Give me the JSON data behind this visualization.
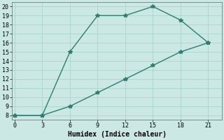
{
  "xlabel": "Humidex (Indice chaleur)",
  "background_color": "#cce8e4",
  "grid_color": "#aad4cf",
  "line_color": "#2e7d6e",
  "line1_x": [
    0,
    3,
    6,
    9,
    12,
    15,
    18,
    21
  ],
  "line1_y": [
    8,
    8,
    15,
    19,
    19,
    20,
    18.5,
    16
  ],
  "line2_x": [
    0,
    3,
    6,
    9,
    12,
    15,
    18,
    21
  ],
  "line2_y": [
    8,
    8,
    9,
    10.5,
    12,
    13.5,
    15,
    16
  ],
  "xlim": [
    -0.3,
    22.5
  ],
  "ylim": [
    7.5,
    20.5
  ],
  "xticks": [
    0,
    3,
    6,
    9,
    12,
    15,
    18,
    21
  ],
  "yticks": [
    8,
    9,
    10,
    11,
    12,
    13,
    14,
    15,
    16,
    17,
    18,
    19,
    20
  ],
  "marker": "*",
  "markersize": 4,
  "linewidth": 1.0,
  "tick_fontsize": 6,
  "label_fontsize": 7
}
